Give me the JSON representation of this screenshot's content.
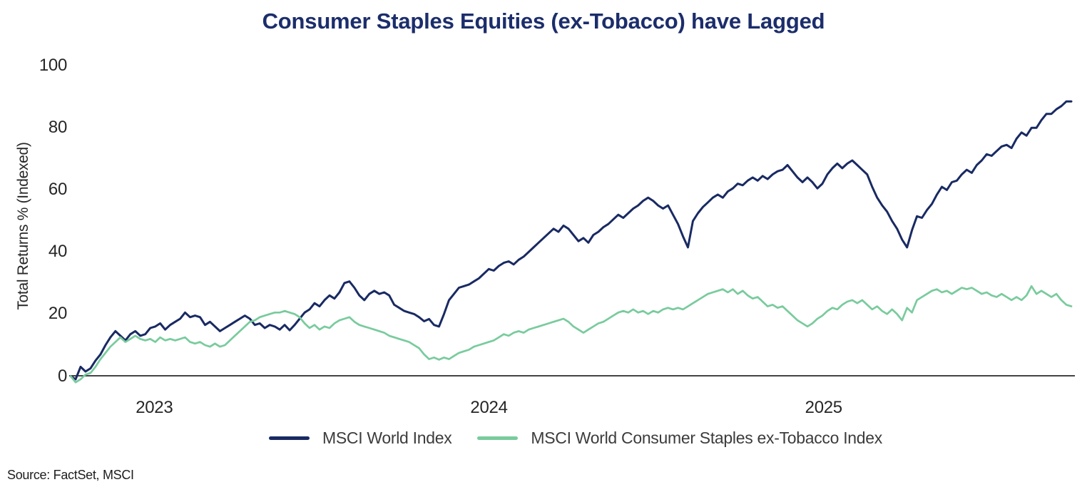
{
  "title": "Consumer Staples Equities (ex-Tobacco) have Lagged",
  "source_note": "Source: FactSet, MSCI",
  "colors": {
    "title": "#1b2d6b",
    "world_line": "#192a63",
    "staples_line": "#79cb9d",
    "axis_line": "#444444",
    "tick_text": "#262626",
    "legend_text": "#3c3c3c"
  },
  "y_axis": {
    "label": "Total Returns % (Indexed)",
    "ticks": [
      "0",
      "20",
      "40",
      "60",
      "80",
      "100"
    ],
    "tick_values": [
      0,
      20,
      40,
      60,
      80,
      100
    ]
  },
  "x_axis": {
    "ticks": [
      {
        "label": "2023",
        "year": 2023
      },
      {
        "label": "2024",
        "year": 2024
      },
      {
        "label": "2025",
        "year": 2025
      }
    ]
  },
  "legend": {
    "items": [
      {
        "label": "MSCI World Index",
        "color": "#192a63"
      },
      {
        "label": "MSCI World Consumer Staples ex-Tobacco Index",
        "color": "#79cb9d"
      }
    ]
  },
  "chart_data": {
    "type": "line",
    "title": "Consumer Staples Equities (ex-Tobacco) have Lagged",
    "xlabel": "",
    "ylabel": "Total Returns % (Indexed)",
    "ylim": [
      0,
      100
    ],
    "grid": false,
    "legend_position": "bottom",
    "x_unit": "decimal_year",
    "x_range": [
      2022.75,
      2025.74
    ],
    "x_ticks": [
      2023,
      2024,
      2025
    ],
    "sampling": "values uniformly spaced across x_range",
    "series": [
      {
        "name": "MSCI World Index",
        "color": "#192a63",
        "values": [
          0,
          -1,
          3,
          1.5,
          2.5,
          5,
          7,
          10,
          12.5,
          14.5,
          13,
          11.5,
          13.5,
          14.5,
          13,
          13.5,
          15.5,
          16,
          17,
          15,
          16.5,
          17.5,
          18.5,
          20.5,
          19,
          19.5,
          19,
          16.5,
          17.5,
          16,
          14.5,
          15.5,
          16.5,
          17.5,
          18.5,
          19.5,
          18.5,
          16.5,
          17,
          15.5,
          16.5,
          16,
          15,
          16.5,
          14.8,
          16.5,
          18.5,
          20.5,
          21.5,
          23.5,
          22.5,
          24.5,
          26,
          25,
          27,
          30,
          30.5,
          28.5,
          26,
          24.5,
          26.5,
          27.5,
          26.5,
          27,
          26,
          23,
          22,
          21,
          20.5,
          20,
          19,
          17.7,
          18.4,
          16.5,
          16,
          20,
          24.5,
          26.5,
          28.5,
          29,
          29.5,
          30.5,
          31.5,
          33,
          34.5,
          34,
          35.5,
          36.5,
          37,
          36,
          37.5,
          38.5,
          40,
          41.5,
          43,
          44.5,
          46,
          47.5,
          46.5,
          48.5,
          47.5,
          45.5,
          43.5,
          44.5,
          43,
          45.5,
          46.5,
          48,
          49,
          50.5,
          52,
          51,
          52.5,
          54,
          55,
          56.5,
          57.5,
          56.5,
          55,
          54,
          55,
          52,
          49,
          45,
          41.5,
          50,
          52.5,
          54.5,
          56,
          57.5,
          58.5,
          57.5,
          59.5,
          60.5,
          62,
          61.5,
          63,
          64,
          63,
          64.5,
          63.5,
          65,
          66,
          66.5,
          68,
          66,
          64,
          62.5,
          64,
          62.5,
          60.5,
          62,
          65,
          67,
          68.5,
          67,
          68.5,
          69.5,
          68,
          66.5,
          65,
          61,
          57.5,
          55,
          53,
          50,
          47.5,
          44,
          41.5,
          47,
          51.5,
          51,
          53.5,
          55.5,
          58.5,
          61,
          60,
          62.5,
          63,
          65,
          66.5,
          65.5,
          68,
          69.5,
          71.5,
          71,
          72.5,
          74,
          74.5,
          73.5,
          76.5,
          78.5,
          77.5,
          80,
          80,
          82.5,
          84.5,
          84.5,
          86,
          87,
          88.5,
          88.5
        ]
      },
      {
        "name": "MSCI World Consumer Staples ex-Tobacco Index",
        "color": "#79cb9d",
        "values": [
          0,
          -2,
          -1,
          0.5,
          1,
          3,
          5.5,
          7.5,
          9.5,
          11,
          12.5,
          11,
          12,
          13,
          12,
          11.5,
          12,
          11,
          12.5,
          11.5,
          12,
          11.5,
          12,
          12.5,
          11,
          10.5,
          11,
          10,
          9.5,
          10.5,
          9.5,
          10,
          11.5,
          13,
          14.5,
          16,
          17.5,
          18,
          19,
          19.5,
          20,
          20.5,
          20.5,
          21,
          20.5,
          20,
          19,
          17,
          15.5,
          16.5,
          15,
          16,
          15.5,
          17,
          18,
          18.5,
          19,
          17.5,
          16.5,
          16,
          15.5,
          15,
          14.5,
          14,
          13,
          12.5,
          12,
          11.5,
          11,
          10,
          9,
          7,
          5.5,
          6,
          5.3,
          6,
          5.5,
          6.5,
          7.5,
          8,
          8.5,
          9.5,
          10,
          10.5,
          11,
          11.5,
          12.5,
          13.5,
          13,
          14,
          14.5,
          14,
          15,
          15.5,
          16,
          16.5,
          17,
          17.5,
          18,
          18.5,
          17.5,
          16,
          15,
          14,
          15,
          16,
          17,
          17.5,
          18.5,
          19.5,
          20.5,
          21,
          20.5,
          21.5,
          20.5,
          21,
          20,
          21,
          20.5,
          21.5,
          22,
          21.5,
          22,
          21.5,
          22.5,
          23.5,
          24.5,
          25.5,
          26.5,
          27,
          27.5,
          28,
          27,
          28,
          26.5,
          27.5,
          26,
          25,
          25.5,
          24,
          22.5,
          23,
          22,
          22.5,
          21,
          19.5,
          18,
          17,
          16,
          17,
          18.5,
          19.5,
          21,
          22,
          21.5,
          23,
          24,
          24.5,
          23.5,
          24.5,
          23,
          21.5,
          22.5,
          21,
          20,
          21.5,
          20,
          18,
          22,
          20.5,
          24.5,
          25.5,
          26.5,
          27.5,
          28,
          27,
          27.5,
          26.5,
          27.5,
          28.5,
          28,
          28.5,
          27.5,
          26.5,
          27,
          26,
          25.5,
          26.5,
          25.5,
          24.5,
          25.5,
          24.5,
          26,
          29,
          26.5,
          27.5,
          26.5,
          25.5,
          26.5,
          24.5,
          23,
          22.5
        ]
      }
    ]
  }
}
